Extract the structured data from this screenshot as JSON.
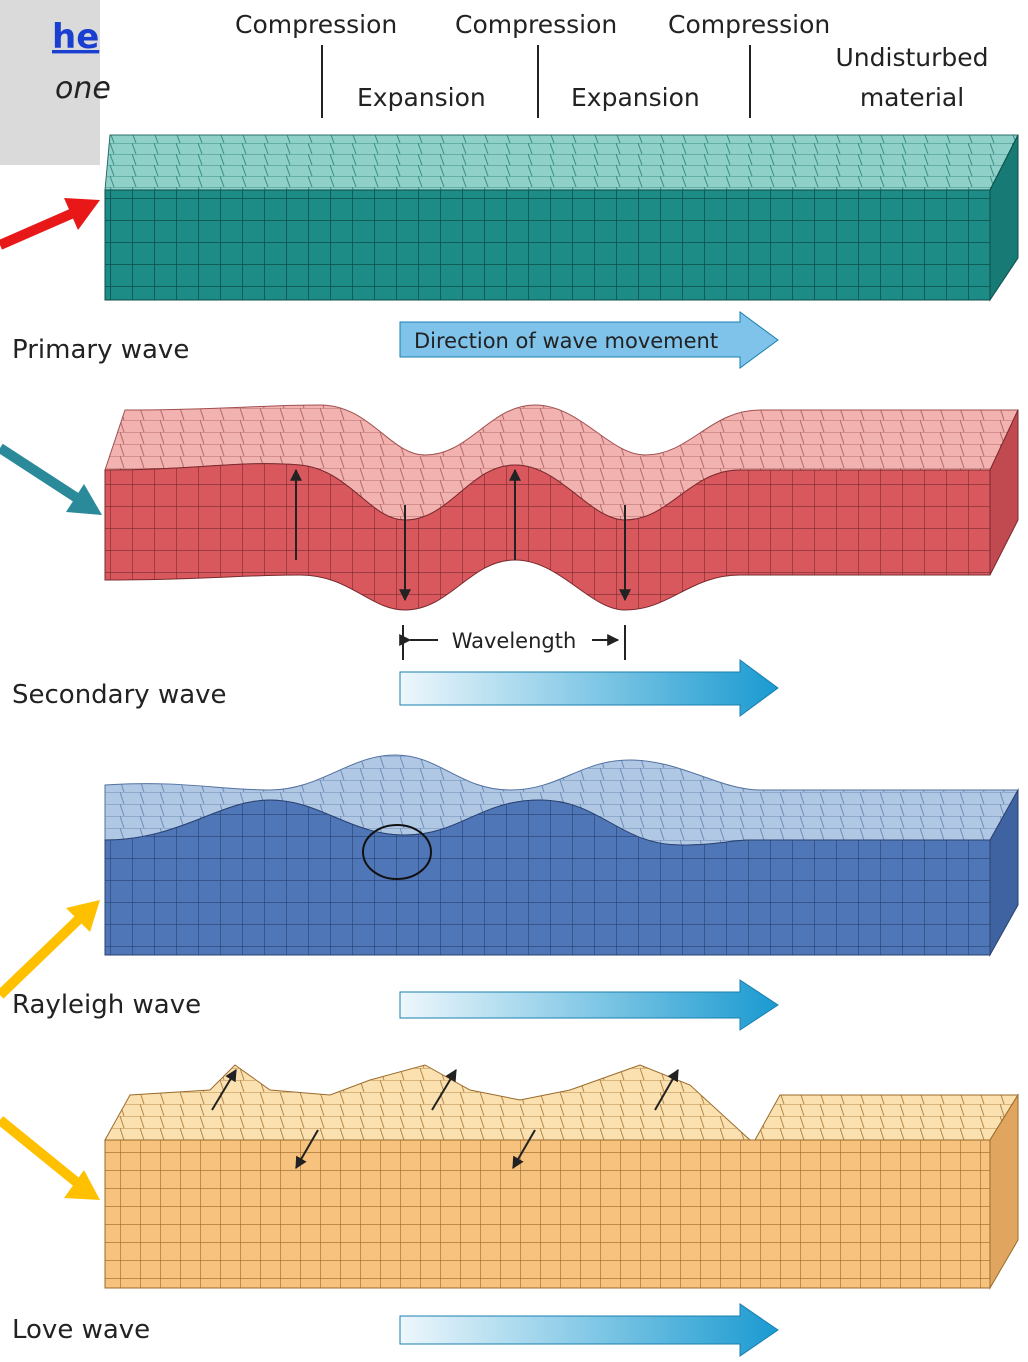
{
  "sidebar": {
    "link": "he",
    "note": "one"
  },
  "labels": {
    "compression": [
      "Compression",
      "Compression",
      "Compression"
    ],
    "expansion": [
      "Expansion",
      "Expansion"
    ],
    "undisturbed": [
      "Undisturbed",
      "material"
    ]
  },
  "waves": [
    {
      "name": "Primary wave",
      "arrow": "Direction of wave movement"
    },
    {
      "name": "Secondary wave",
      "annotation": "Wavelength"
    },
    {
      "name": "Rayleigh wave"
    },
    {
      "name": "Love wave"
    }
  ]
}
